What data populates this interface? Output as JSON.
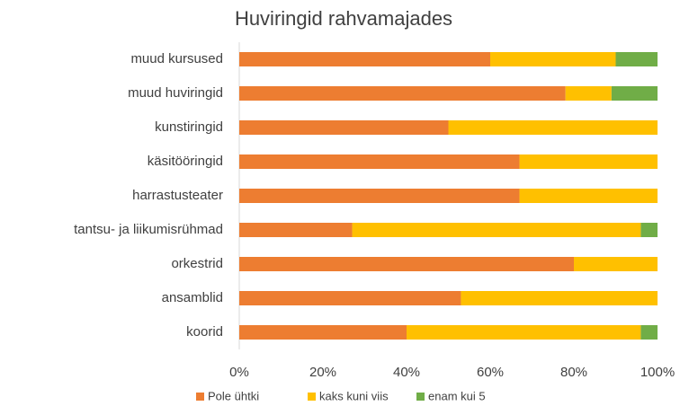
{
  "chart_data": {
    "type": "stacked-bar-horizontal",
    "title": "Huviringid rahvamajades",
    "categories": [
      "muud kursused",
      "muud huviringid",
      "kunstiringid",
      "käsitööringid",
      "harrastusteater",
      "tantsu- ja liikumisrühmad",
      "orkestrid",
      "ansamblid",
      "koorid"
    ],
    "series": [
      {
        "name": "Pole ühtki",
        "color": "#ed7d31",
        "values": [
          60,
          78,
          50,
          67,
          67,
          27,
          80,
          53,
          40
        ]
      },
      {
        "name": "kaks kuni viis",
        "color": "#ffc000",
        "values": [
          30,
          11,
          50,
          33,
          33,
          69,
          20,
          47,
          56
        ]
      },
      {
        "name": "enam kui 5",
        "color": "#70ad47",
        "values": [
          10,
          11,
          0,
          0,
          0,
          4,
          0,
          0,
          4
        ]
      }
    ],
    "xlim": [
      0,
      100
    ],
    "xticks": [
      {
        "value": 0,
        "label": "0%"
      },
      {
        "value": 20,
        "label": "20%"
      },
      {
        "value": 40,
        "label": "40%"
      },
      {
        "value": 60,
        "label": "60%"
      },
      {
        "value": 80,
        "label": "80%"
      },
      {
        "value": 100,
        "label": "100%"
      }
    ],
    "legend": "bottom"
  }
}
